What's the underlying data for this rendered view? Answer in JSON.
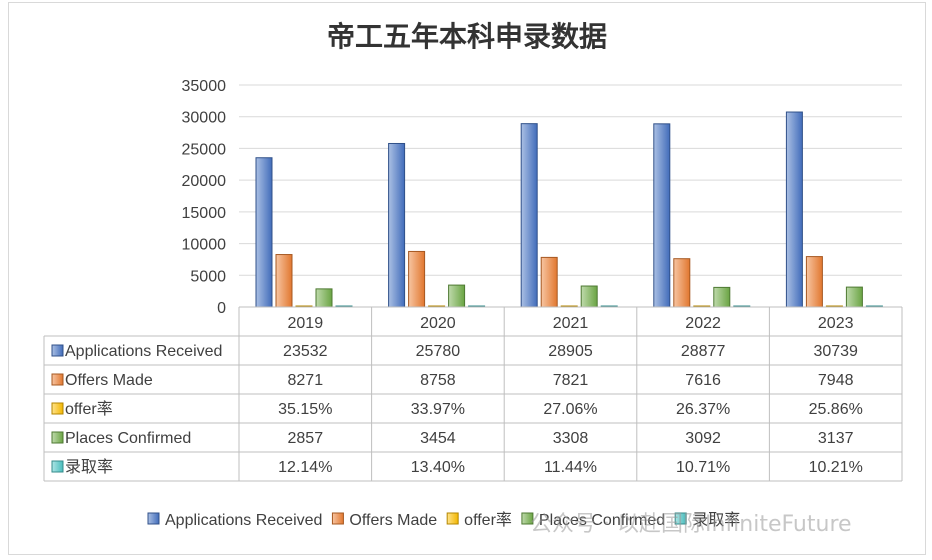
{
  "chart_data": {
    "type": "bar",
    "title": "帝工五年本科申录数据",
    "categories": [
      "2019",
      "2020",
      "2021",
      "2022",
      "2023"
    ],
    "series": [
      {
        "name": "Applications Received",
        "values": [
          23532,
          25780,
          28905,
          28877,
          30739
        ],
        "labels": [
          "23532",
          "25780",
          "28905",
          "28877",
          "30739"
        ],
        "color": "#4472c4",
        "plotted_as": "count"
      },
      {
        "name": "Offers Made",
        "values": [
          8271,
          8758,
          7821,
          7616,
          7948
        ],
        "labels": [
          "8271",
          "8758",
          "7821",
          "7616",
          "7948"
        ],
        "color": "#ed7d31",
        "plotted_as": "count"
      },
      {
        "name": "offer率",
        "values": [
          35.15,
          33.97,
          27.06,
          26.37,
          25.86
        ],
        "labels": [
          "35.15%",
          "33.97%",
          "27.06%",
          "26.37%",
          "25.86%"
        ],
        "color": "#ffc000",
        "plotted_as": "percent"
      },
      {
        "name": "Places Confirmed",
        "values": [
          2857,
          3454,
          3308,
          3092,
          3137
        ],
        "labels": [
          "2857",
          "3454",
          "3308",
          "3092",
          "3137"
        ],
        "color": "#70ad47",
        "plotted_as": "count"
      },
      {
        "name": "录取率",
        "values": [
          12.14,
          13.4,
          11.44,
          10.71,
          10.21
        ],
        "labels": [
          "12.14%",
          "13.40%",
          "11.44%",
          "10.71%",
          "10.21%"
        ],
        "color": "#4bc6c6",
        "plotted_as": "percent"
      }
    ],
    "yticks": [
      "0",
      "5000",
      "10000",
      "15000",
      "20000",
      "25000",
      "30000",
      "35000"
    ],
    "ylim": [
      0,
      35000
    ],
    "grid": true,
    "data_table": true,
    "legend_position": "bottom"
  },
  "watermark": "公众号 · 以赴国际InfiniteFuture"
}
